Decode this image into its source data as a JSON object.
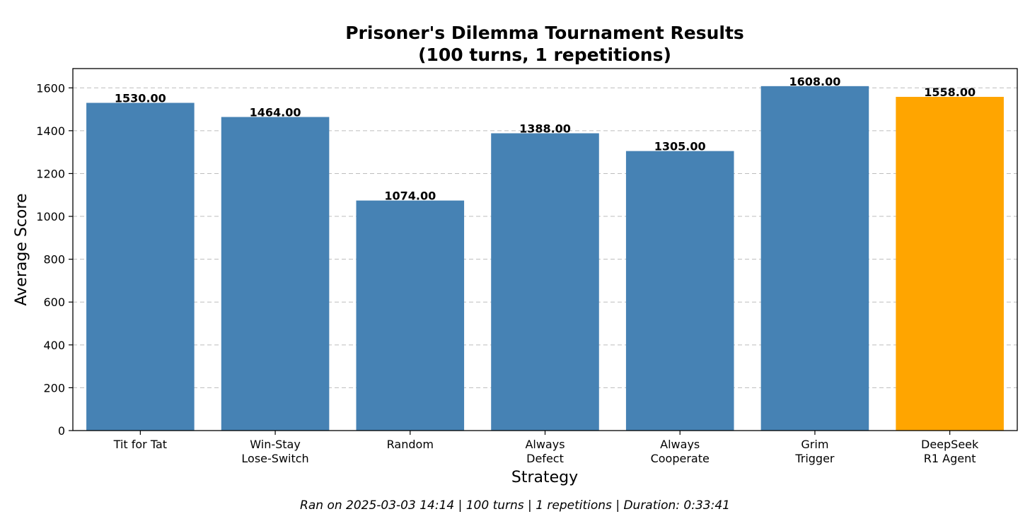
{
  "chart_data": {
    "type": "bar",
    "title": [
      "Prisoner's Dilemma Tournament Results",
      "(100 turns, 1 repetitions)"
    ],
    "xlabel": "Strategy",
    "ylabel": "Average Score",
    "categories": [
      [
        "Tit for Tat"
      ],
      [
        "Win-Stay",
        "Lose-Switch"
      ],
      [
        "Random"
      ],
      [
        "Always",
        "Defect"
      ],
      [
        "Always",
        "Cooperate"
      ],
      [
        "Grim",
        "Trigger"
      ],
      [
        "DeepSeek",
        "R1 Agent"
      ]
    ],
    "values": [
      1530.0,
      1464.0,
      1074.0,
      1388.0,
      1305.0,
      1608.0,
      1558.0
    ],
    "value_labels": [
      "1530.00",
      "1464.00",
      "1074.00",
      "1388.00",
      "1305.00",
      "1608.00",
      "1558.00"
    ],
    "bar_colors": [
      "#4682b4",
      "#4682b4",
      "#4682b4",
      "#4682b4",
      "#4682b4",
      "#4682b4",
      "#ffa500"
    ],
    "ylim": [
      0,
      1690
    ],
    "yticks": [
      0,
      200,
      400,
      600,
      800,
      1000,
      1200,
      1400,
      1600
    ],
    "grid": "y-dashed",
    "footer": "Ran on 2025-03-03 14:14 | 100 turns | 1 repetitions | Duration: 0:33:41"
  }
}
